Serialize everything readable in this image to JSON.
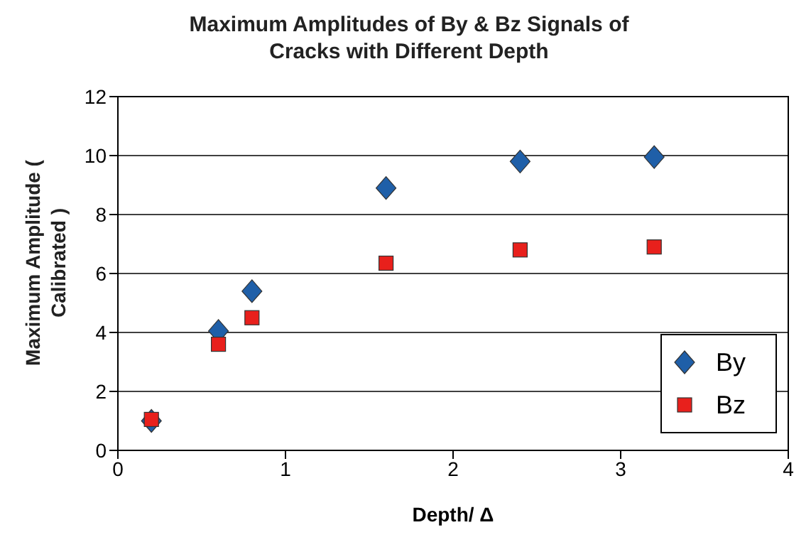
{
  "chart_data": {
    "type": "scatter",
    "title": "Maximum Amplitudes of By & Bz Signals of Cracks with Different Depth",
    "xlabel": "Depth/ Δ",
    "ylabel": "Maximum Amplitude ( Calibrated )",
    "x": [
      0.2,
      0.6,
      0.8,
      1.6,
      2.4,
      3.2
    ],
    "series": [
      {
        "name": "By",
        "color": "#1f5fa8",
        "marker": "diamond",
        "values": [
          1.0,
          4.05,
          5.4,
          8.9,
          9.8,
          9.95
        ]
      },
      {
        "name": "Bz",
        "color": "#e8201c",
        "marker": "square",
        "values": [
          1.05,
          3.6,
          4.5,
          6.35,
          6.8,
          6.9
        ]
      }
    ],
    "xlim": [
      0,
      4
    ],
    "xticks": [
      0,
      1,
      2,
      3,
      4
    ],
    "ylim": [
      0,
      12
    ],
    "yticks": [
      0,
      2,
      4,
      6,
      8,
      10,
      12
    ],
    "grid": "y",
    "legend": "bottom right"
  }
}
